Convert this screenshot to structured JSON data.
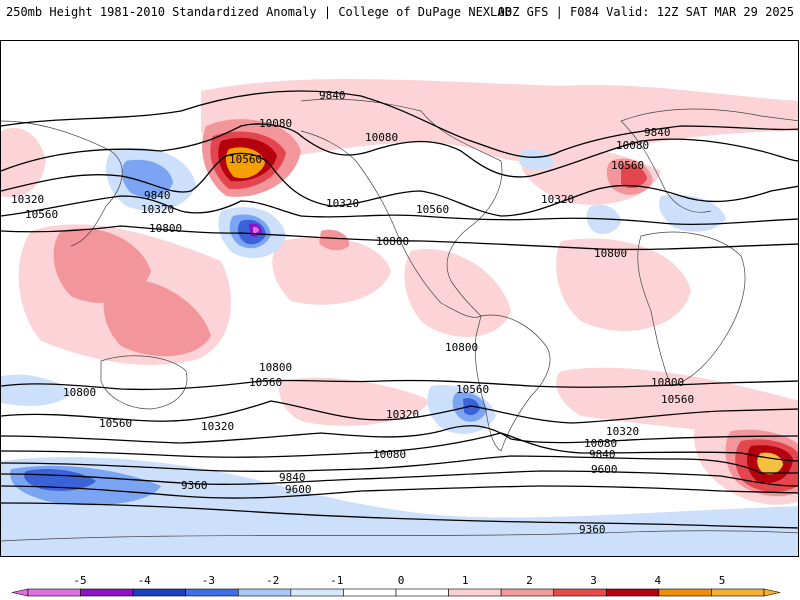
{
  "header": {
    "left_title": "250mb Height 1981-2010 Standardized Anomaly | College of DuPage NEXLAB",
    "right_title": "00Z GFS | F084 Valid: 12Z SAT MAR 29 2025"
  },
  "contour_labels": [
    "9840",
    "10080",
    "10080",
    "10560",
    "9840",
    "10320",
    "10320",
    "10560",
    "10800",
    "10320",
    "10560",
    "10800",
    "9840",
    "10080",
    "10560",
    "10320",
    "10800",
    "10800",
    "10560",
    "10800",
    "10800",
    "10560",
    "10320",
    "10560",
    "10320",
    "10080",
    "9840",
    "9600",
    "9360",
    "10800",
    "10560",
    "10320",
    "10080",
    "9840",
    "9600",
    "9360"
  ],
  "colorbar": {
    "tick_labels": [
      "-5",
      "-4",
      "-3",
      "-2",
      "-1",
      "0",
      "1",
      "2",
      "3",
      "4",
      "5"
    ],
    "colors": [
      "#e070e0",
      "#8e10c8",
      "#1a3fc0",
      "#3f6fe8",
      "#a8c8f8",
      "#d8e8fc",
      "#ffffff",
      "#ffffff",
      "#fbd0d0",
      "#f39a9a",
      "#e84a4a",
      "#b80010",
      "#f09000",
      "#f8b030"
    ],
    "anomaly_colors": {
      "neg1": "#cde0fb",
      "neg2": "#7ba4f2",
      "neg3": "#3b63d9",
      "neg4": "#1a3fa8",
      "pos1": "#fcd3d6",
      "pos2": "#f2969c",
      "pos3": "#e3464f",
      "pos4": "#b5000e",
      "pos5": "#f5a000"
    }
  }
}
